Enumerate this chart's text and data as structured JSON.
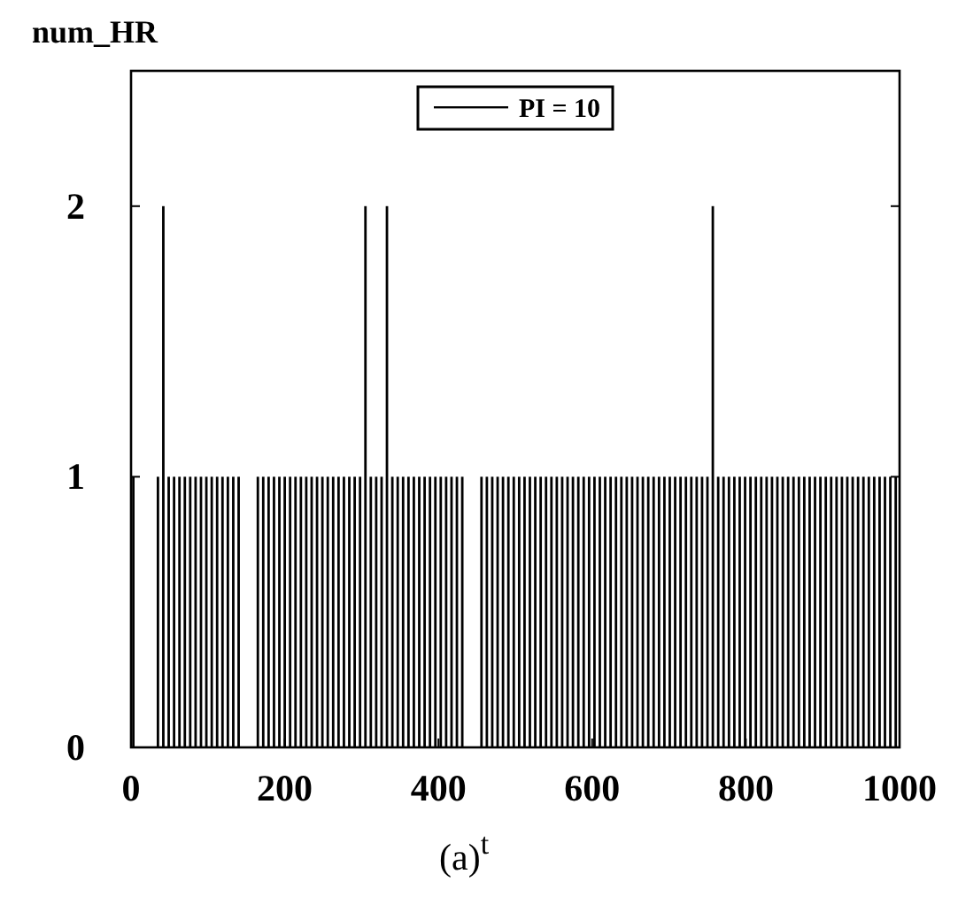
{
  "chart_data": {
    "type": "bar",
    "ylabel": "num_HR",
    "xlabel": "t",
    "annotations": [
      "(a)"
    ],
    "x": [
      3,
      35,
      42,
      49,
      56,
      63,
      70,
      77,
      84,
      91,
      98,
      105,
      112,
      119,
      126,
      133,
      140,
      165,
      172,
      179,
      186,
      193,
      200,
      207,
      214,
      221,
      228,
      235,
      242,
      249,
      256,
      263,
      270,
      277,
      284,
      291,
      298,
      305,
      312,
      319,
      326,
      333,
      340,
      347,
      354,
      361,
      368,
      375,
      382,
      389,
      396,
      403,
      410,
      417,
      424,
      431,
      456,
      463,
      470,
      477,
      484,
      491,
      498,
      505,
      512,
      519,
      526,
      533,
      540,
      547,
      554,
      561,
      568,
      575,
      582,
      589,
      596,
      603,
      610,
      617,
      624,
      631,
      638,
      645,
      652,
      659,
      666,
      673,
      680,
      687,
      694,
      701,
      708,
      715,
      722,
      729,
      736,
      743,
      750,
      757,
      764,
      771,
      778,
      785,
      792,
      799,
      806,
      813,
      820,
      827,
      834,
      841,
      848,
      855,
      862,
      869,
      876,
      883,
      890,
      897,
      904,
      911,
      918,
      925,
      932,
      939,
      946,
      953,
      960,
      967,
      974,
      981,
      988,
      995
    ],
    "series": [
      {
        "name": "PI = 10",
        "color": "#000000",
        "values": [
          1,
          1,
          2,
          1,
          1,
          1,
          1,
          1,
          1,
          1,
          1,
          1,
          1,
          1,
          1,
          1,
          1,
          1,
          1,
          1,
          1,
          1,
          1,
          1,
          1,
          1,
          1,
          1,
          1,
          1,
          1,
          1,
          1,
          1,
          1,
          1,
          1,
          2,
          1,
          1,
          1,
          2,
          1,
          1,
          1,
          1,
          1,
          1,
          1,
          1,
          1,
          1,
          1,
          1,
          1,
          1,
          1,
          1,
          1,
          1,
          1,
          1,
          1,
          1,
          1,
          1,
          1,
          1,
          1,
          1,
          1,
          1,
          1,
          1,
          1,
          1,
          1,
          1,
          1,
          1,
          1,
          1,
          1,
          1,
          1,
          1,
          1,
          1,
          1,
          1,
          1,
          1,
          1,
          1,
          1,
          1,
          1,
          1,
          1,
          2,
          1,
          1,
          1,
          1,
          1,
          1,
          1,
          1,
          1,
          1,
          1,
          1,
          1,
          1,
          1,
          1,
          1,
          1,
          1,
          1,
          1,
          1,
          1,
          1,
          1,
          1,
          1,
          1,
          1,
          1,
          1,
          1,
          1,
          1
        ]
      }
    ],
    "xlim": [
      0,
      1000
    ],
    "xticks": [
      0,
      200,
      400,
      600,
      800,
      1000
    ],
    "ylim": [
      0,
      2.5
    ],
    "yticks": [
      0,
      1,
      2
    ],
    "legend": "top",
    "grid": false
  }
}
